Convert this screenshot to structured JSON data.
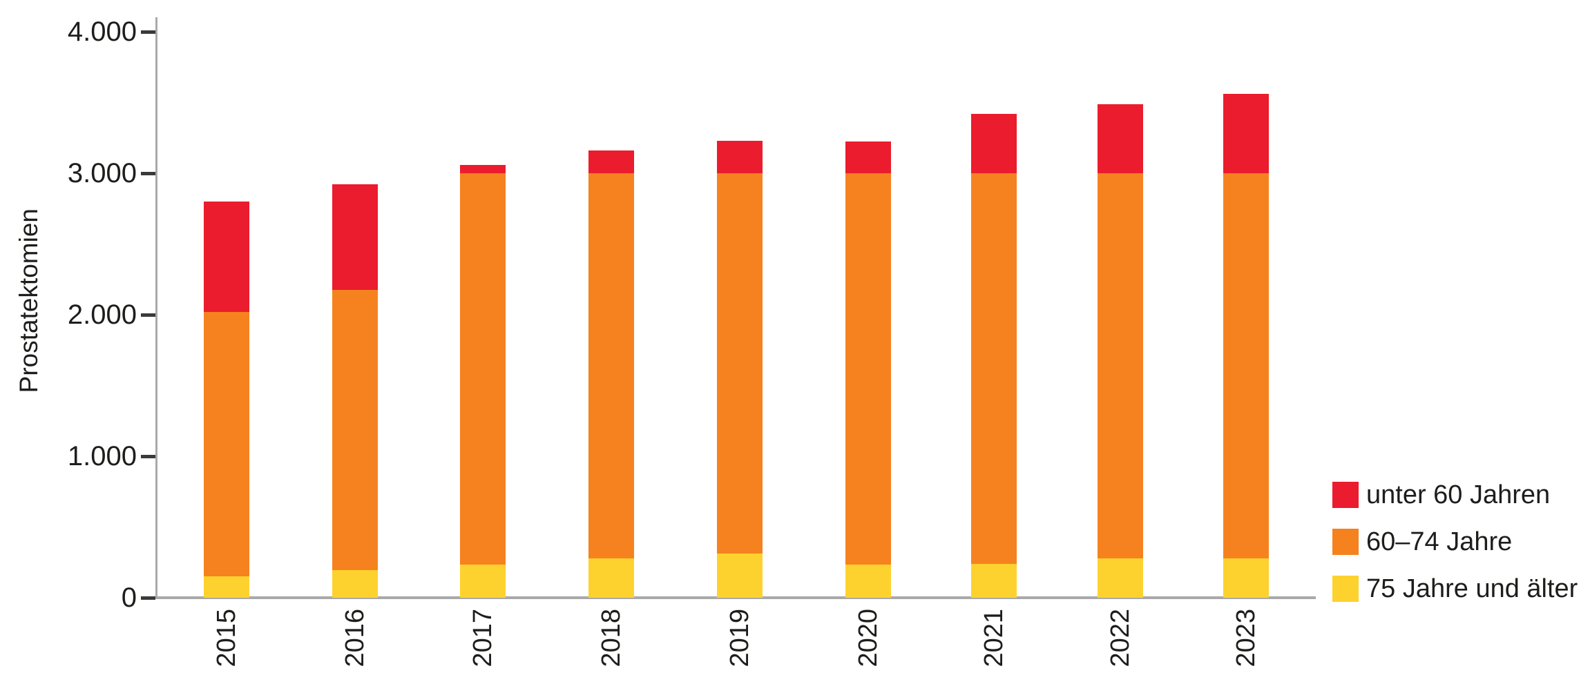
{
  "chart_data": {
    "type": "bar",
    "stacked": true,
    "title": "",
    "ylabel": "Prostatektomien",
    "xlabel": "",
    "categories": [
      "2015",
      "2016",
      "2017",
      "2018",
      "2019",
      "2020",
      "2021",
      "2022",
      "2023"
    ],
    "series": [
      {
        "name": "75 Jahre und älter",
        "color": "#fed22e",
        "values": [
          150,
          195,
          235,
          280,
          310,
          235,
          240,
          280,
          280
        ]
      },
      {
        "name": "60–74 Jahre",
        "color": "#f5821f",
        "values": [
          1870,
          1980,
          2765,
          2720,
          2690,
          2765,
          2760,
          2720,
          2720
        ]
      },
      {
        "name": "unter 60 Jahren",
        "color": "#eb1c2d",
        "values": [
          780,
          745,
          60,
          160,
          230,
          225,
          420,
          490,
          560
        ]
      }
    ],
    "totals": [
      2800,
      2920,
      3060,
      3160,
      3230,
      3225,
      3420,
      3490,
      3560
    ],
    "ylim": [
      0,
      4000
    ],
    "yticks": [
      {
        "value": 0,
        "label": "0"
      },
      {
        "value": 1000,
        "label": "1.000"
      },
      {
        "value": 2000,
        "label": "2.000"
      },
      {
        "value": 3000,
        "label": "3.000"
      },
      {
        "value": 4000,
        "label": "4.000"
      }
    ],
    "grid": false,
    "legend_position": "bottom-right",
    "legend_order": [
      "unter 60 Jahren",
      "60–74 Jahre",
      "75 Jahre und älter"
    ]
  },
  "colors": {
    "under_60": "#eb1c2d",
    "60_to_74": "#f5821f",
    "75_plus": "#fed22e",
    "axis_line": "#a9a9a9",
    "tick_dash": "#3a3a39",
    "text": "#1d1d1b",
    "background": "#ffffff"
  }
}
